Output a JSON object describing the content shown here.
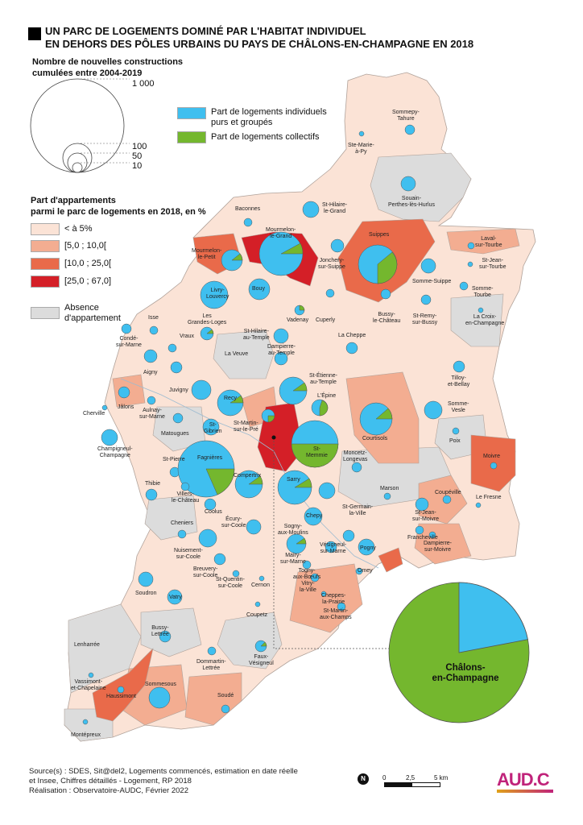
{
  "title": {
    "line1": "UN PARC DE LOGEMENTS DOMINÉ PAR L'HABITAT INDIVIDUEL",
    "line2": "EN DEHORS DES PÔLES URBAINS DU PAYS DE CHÂLONS-EN-CHAMPAGNE EN 2018"
  },
  "legend_size": {
    "title_line1": "Nombre de nouvelles constructions",
    "title_line2": "cumulées entre 2004-2019",
    "values": [
      "1 000",
      "100",
      "50",
      "10"
    ]
  },
  "legend_pie": {
    "individual": "Part de logements individuels",
    "individual2": "purs et groupés",
    "collective": "Part de logements collectifs",
    "color_individual": "#3fbfef",
    "color_collective": "#74b72e"
  },
  "legend_share": {
    "title_line1": "Part d'appartements",
    "title_line2": "parmi le parc de logements en 2018, en %",
    "classes": [
      {
        "label": "< à 5%",
        "color": "#fbe3d6"
      },
      {
        "label": "[5,0 ; 10,0[",
        "color": "#f3ad91"
      },
      {
        "label": "[10,0 ; 25,0[",
        "color": "#e96a4a"
      },
      {
        "label": "[25,0 ; 67,0]",
        "color": "#d41f27"
      }
    ],
    "absence_line1": "Absence",
    "absence_line2": "d'appartement",
    "absence_color": "#dcdcdc"
  },
  "communes": [
    {
      "name": "Sommepy-Tahure",
      "l1": "Sommepy-",
      "l2": "Tahure"
    },
    {
      "name": "Ste-Marie-à-Py",
      "l1": "Ste-Marie-",
      "l2": "à-Py"
    },
    {
      "name": "Souain-Perthes-lès-Hurlus",
      "l1": "Souain-",
      "l2": "Perthes-lès-Hurlus"
    },
    {
      "name": "St-Hilaire-le-Grand",
      "l1": "St-Hilaire-",
      "l2": "le-Grand"
    },
    {
      "name": "Baconnes",
      "l1": "Baconnes",
      "l2": ""
    },
    {
      "name": "Mourmelon-le-Grand",
      "l1": "Mourmelon-",
      "l2": "le-Grand"
    },
    {
      "name": "Mourmelon-le-Petit",
      "l1": "Mourmelon-",
      "l2": "le-Petit"
    },
    {
      "name": "Suippes",
      "l1": "Suippes",
      "l2": ""
    },
    {
      "name": "Laval-sur-Tourbe",
      "l1": "Laval-",
      "l2": "sur-Tourbe"
    },
    {
      "name": "St-Jean-sur-Tourbe",
      "l1": "St-Jean-",
      "l2": "sur-Tourbe"
    },
    {
      "name": "Somme-Tourbe",
      "l1": "Somme-",
      "l2": "Tourbe"
    },
    {
      "name": "Jonchery-sur-Suippe",
      "l1": "Jonchery-",
      "l2": "sur-Suippe"
    },
    {
      "name": "Somme-Suippe",
      "l1": "Somme-Suippe",
      "l2": ""
    },
    {
      "name": "Livry-Louvercy",
      "l1": "Livry-",
      "l2": "Louvercy"
    },
    {
      "name": "Bouy",
      "l1": "Bouy",
      "l2": ""
    },
    {
      "name": "Vadenay",
      "l1": "Vadenay",
      "l2": ""
    },
    {
      "name": "Cuperly",
      "l1": "Cuperly",
      "l2": ""
    },
    {
      "name": "Bussy-le-Château",
      "l1": "Bussy-",
      "l2": "le-Château"
    },
    {
      "name": "St-Remy-sur-Bussy",
      "l1": "St-Remy-",
      "l2": "sur-Bussy"
    },
    {
      "name": "La Croix-en-Champagne",
      "l1": "La Croix-",
      "l2": "en-Champagne"
    },
    {
      "name": "Isse",
      "l1": "Isse",
      "l2": ""
    },
    {
      "name": "Les Grandes-Loges",
      "l1": "Les",
      "l2": "Grandes-Loges"
    },
    {
      "name": "St-Hilaire-au-Temple",
      "l1": "St-Hilaire-",
      "l2": "au-Temple"
    },
    {
      "name": "La Cheppe",
      "l1": "La Cheppe",
      "l2": ""
    },
    {
      "name": "Condé-sur-Marne",
      "l1": "Condé-",
      "l2": "sur-Marne"
    },
    {
      "name": "Vraux",
      "l1": "Vraux",
      "l2": ""
    },
    {
      "name": "La Veuve",
      "l1": "La Veuve",
      "l2": ""
    },
    {
      "name": "Dampierre-au-Temple",
      "l1": "Dampierre-",
      "l2": "au-Temple"
    },
    {
      "name": "Aigny",
      "l1": "Aigny",
      "l2": ""
    },
    {
      "name": "Tilloy-et-Bellay",
      "l1": "Tilloy-",
      "l2": "et-Bellay"
    },
    {
      "name": "St-Étienne-au-Temple",
      "l1": "St-Étienne-",
      "l2": "au-Temple"
    },
    {
      "name": "Juvigny",
      "l1": "Juvigny",
      "l2": ""
    },
    {
      "name": "L'Épine",
      "l1": "L'Épine",
      "l2": ""
    },
    {
      "name": "Jâlons",
      "l1": "Jâlons",
      "l2": ""
    },
    {
      "name": "Aulnay-sur-Marne",
      "l1": "Aulnay-",
      "l2": "sur-Marne"
    },
    {
      "name": "Recy",
      "l1": "Recy",
      "l2": ""
    },
    {
      "name": "Somme-Vesle",
      "l1": "Somme-",
      "l2": "Vesle"
    },
    {
      "name": "Cherville",
      "l1": "Cherville",
      "l2": ""
    },
    {
      "name": "St-Martin-sur-le-Pré",
      "l1": "St-Martin-",
      "l2": "sur-le-Pré"
    },
    {
      "name": "Matougues",
      "l1": "Matougues",
      "l2": ""
    },
    {
      "name": "St-Gibrien",
      "l1": "St-",
      "l2": "Gibrien"
    },
    {
      "name": "Courtisols",
      "l1": "Courtisols",
      "l2": ""
    },
    {
      "name": "Champigneul-Champagne",
      "l1": "Champigneul-",
      "l2": "Champagne"
    },
    {
      "name": "Poix",
      "l1": "Poix",
      "l2": ""
    },
    {
      "name": "St-Memmie",
      "l1": "St-",
      "l2": "Memmie"
    },
    {
      "name": "St-Pierre",
      "l1": "St-Pierre",
      "l2": ""
    },
    {
      "name": "Fagnières",
      "l1": "Fagnières",
      "l2": ""
    },
    {
      "name": "Moivre",
      "l1": "Moivre",
      "l2": ""
    },
    {
      "name": "Moncetz-Longevas",
      "l1": "Moncetz-",
      "l2": "Longevas"
    },
    {
      "name": "Compertrix",
      "l1": "Compertrix",
      "l2": ""
    },
    {
      "name": "Thibie",
      "l1": "Thibie",
      "l2": ""
    },
    {
      "name": "Marson",
      "l1": "Marson",
      "l2": ""
    },
    {
      "name": "Villers-le-Château",
      "l1": "Villers-",
      "l2": "le-Château"
    },
    {
      "name": "Sarry",
      "l1": "Sarry",
      "l2": ""
    },
    {
      "name": "Coupéville",
      "l1": "Coupéville",
      "l2": ""
    },
    {
      "name": "Coolus",
      "l1": "Coolus",
      "l2": ""
    },
    {
      "name": "Le Fresne",
      "l1": "Le Fresne",
      "l2": ""
    },
    {
      "name": "Chepy",
      "l1": "Chepy",
      "l2": ""
    },
    {
      "name": "St-Germain-la-Ville",
      "l1": "St-Germain-",
      "l2": "la-Ville"
    },
    {
      "name": "Cheniers",
      "l1": "Cheniers",
      "l2": ""
    },
    {
      "name": "Écury-sur-Coole",
      "l1": "Écury-",
      "l2": "sur-Coole"
    },
    {
      "name": "Sogny-aux-Moulins",
      "l1": "Sogny-",
      "l2": "aux-Moulins"
    },
    {
      "name": "St-Jean-sur-Moivre",
      "l1": "St-Jean-",
      "l2": "sur-Moivre"
    },
    {
      "name": "Francheville",
      "l1": "Francheville",
      "l2": ""
    },
    {
      "name": "Nuisement-sur-Coole",
      "l1": "Nuisement-",
      "l2": "sur-Coole"
    },
    {
      "name": "Mairy-sur-Marne",
      "l1": "Mairy-",
      "l2": "sur-Marne"
    },
    {
      "name": "Vésigneul-sur-Marne",
      "l1": "Vésigneul-",
      "l2": "sur-Marne"
    },
    {
      "name": "Pogny",
      "l1": "Pogny",
      "l2": ""
    },
    {
      "name": "Dampierre-sur-Moivre",
      "l1": "Dampierre-",
      "l2": "sur-Moivre"
    },
    {
      "name": "Breuvery-sur-Coole",
      "l1": "Breuvery-",
      "l2": "sur-Coole"
    },
    {
      "name": "Omey",
      "l1": "Omey",
      "l2": ""
    },
    {
      "name": "Togny-aux-Bœufs",
      "l1": "Togny-",
      "l2": "aux-Bœufs"
    },
    {
      "name": "St-Quentin-sur-Coole",
      "l1": "St-Quentin-",
      "l2": "sur-Coole"
    },
    {
      "name": "Cernon",
      "l1": "Cernon",
      "l2": ""
    },
    {
      "name": "Vitry-la-Ville",
      "l1": "Vitry-",
      "l2": "la-Ville"
    },
    {
      "name": "Soudron",
      "l1": "Soudron",
      "l2": ""
    },
    {
      "name": "Vatry",
      "l1": "Vatry",
      "l2": ""
    },
    {
      "name": "Cheppes-la-Prairie",
      "l1": "Cheppes-",
      "l2": "la-Prairie"
    },
    {
      "name": "Coupetz",
      "l1": "Coupetz",
      "l2": ""
    },
    {
      "name": "St-Martin-aux-Champs",
      "l1": "St-Martin-",
      "l2": "aux-Champs"
    },
    {
      "name": "Bussy-Lettrée",
      "l1": "Bussy-",
      "l2": "Lettrée"
    },
    {
      "name": "Lenharrée",
      "l1": "Lenharrée",
      "l2": ""
    },
    {
      "name": "Faux-Vésigneul",
      "l1": "Faux-",
      "l2": "Vésigneul"
    },
    {
      "name": "Dommartin-Lettrée",
      "l1": "Dommartin-",
      "l2": "Lettrée"
    },
    {
      "name": "Vassimont-et-Chapelaine",
      "l1": "Vassimont-",
      "l2": "et-Chapelaine"
    },
    {
      "name": "Haussimont",
      "l1": "Haussimont",
      "l2": ""
    },
    {
      "name": "Sommesous",
      "l1": "Sommesous",
      "l2": ""
    },
    {
      "name": "Soudé",
      "l1": "Soudé",
      "l2": ""
    },
    {
      "name": "Montépreux",
      "l1": "Montépreux",
      "l2": ""
    }
  ],
  "chalons": {
    "line1": "Châlons-",
    "line2": "en-Champagne",
    "individual_share": 0.22
  },
  "footer": {
    "line1": "Source(s) : SDES, Sit@del2, Logements commencés, estimation en date réelle",
    "line2": "et Insee, Chiffres détaillés - Logement, RP 2018",
    "line3": "Réalisation : Observatoire-AUDC, Février 2022"
  },
  "scale": {
    "t0": "0",
    "t1": "2,5",
    "t2": "5 km"
  },
  "north": "N",
  "logo": "AUD.C"
}
